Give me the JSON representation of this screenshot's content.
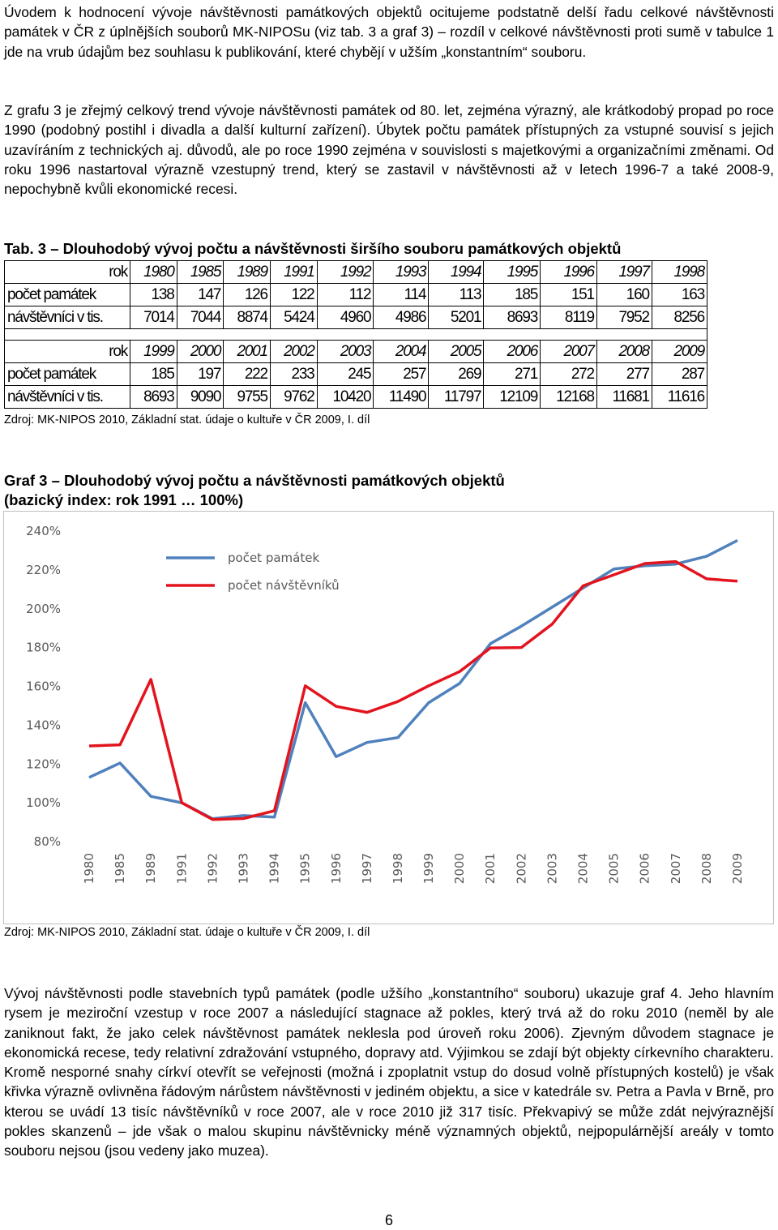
{
  "paragraphs": [
    "Úvodem k hodnocení vývoje návštěvnosti památkových objektů ocitujeme podstatně delší řadu celkové návštěvnosti památek v ČR z úplnějších souborů MK-NIPOSu (viz tab. 3 a graf 3) – rozdíl v celkové návštěvnosti proti sumě v tabulce 1 jde na vrub údajům bez souhlasu k publikování, které chybějí v užším „konstantním“ souboru.",
    "Z grafu 3 je zřejmý celkový trend vývoje návštěvnosti památek od 80. let, zejména výrazný, ale krátkodobý propad po roce 1990 (podobný postihl i divadla a další kulturní zařízení). Úbytek počtu památek přístupných za vstupné souvisí s jejich uzavíráním z technických aj. důvodů, ale po roce 1990 zejména v souvislosti s majetkovými a organizačními změnami. Od roku 1996 nastartoval výrazně vzestupný trend, který se zastavil v návštěvnosti až v letech 1996-7 a také 2008-9, nepochybně kvůli ekonomické recesi.",
    "Vývoj návštěvnosti podle stavebních typů památek (podle užšího „konstantního“ souboru) ukazuje graf 4. Jeho hlavním rysem je meziroční vzestup v roce 2007 a následující stagnace až pokles, který trvá až do roku 2010 (neměl by ale zaniknout fakt, že jako celek návštěvnost památek neklesla pod úroveň roku 2006). Zjevným důvodem stagnace je ekonomická recese, tedy relativní zdražování vstupného, dopravy atd. Výjimkou se zdají být objekty církevního charakteru. Kromě nesporné snahy církví otevřít se veřejnosti (možná i zpoplatnit vstup do dosud volně přístupných kostelů) je však křivka výrazně ovlivněna řádovým nárůstem návštěvnosti v jediném objektu, a sice v katedrále sv. Petra a Pavla v Brně, pro kterou se uvádí 13 tisíc návštěvníků v roce 2007, ale v roce 2010 již 317 tisíc. Překvapivý se může zdát nejvýraznější pokles skanzenů – jde však o malou skupinu návštěvnicky méně významných objektů, nejpopulárnější areály v tomto souboru nejsou (jsou vedeny jako muzea)."
  ],
  "table": {
    "caption": "Tab. 3 – Dlouhodobý vývoj počtu a návštěvnosti širšího souboru památkových objektů",
    "blocks": [
      {
        "header": [
          "rok",
          1980,
          1985,
          1989,
          1991,
          1992,
          1993,
          1994,
          1995,
          1996,
          1997,
          1998
        ],
        "rows": [
          [
            "počet památek",
            138,
            147,
            126,
            122,
            112,
            114,
            113,
            185,
            151,
            160,
            163
          ],
          [
            "návštěvníci v tis.",
            7014,
            7044,
            8874,
            5424,
            4960,
            4986,
            5201,
            8693,
            8119,
            7952,
            8256
          ]
        ]
      },
      {
        "header": [
          "rok",
          1999,
          2000,
          2001,
          2002,
          2003,
          2004,
          2005,
          2006,
          2007,
          2008,
          2009
        ],
        "rows": [
          [
            "počet památek",
            185,
            197,
            222,
            233,
            245,
            257,
            269,
            271,
            272,
            277,
            287
          ],
          [
            "návštěvníci v tis.",
            8693,
            9090,
            9755,
            9762,
            10420,
            11490,
            11797,
            12109,
            12168,
            11681,
            11616
          ]
        ]
      }
    ],
    "source": "Zdroj: MK-NIPOS 2010, Základní stat. údaje o kultuře v ČR 2009, I. díl"
  },
  "graph_caption": [
    "Graf 3 – Dlouhodobý vývoj počtu a návštěvnosti památkových objektů",
    "(bazický index: rok 1991 … 100%)"
  ],
  "chart_data": {
    "type": "line",
    "categories": [
      "1980",
      "1985",
      "1989",
      "1991",
      "1992",
      "1993",
      "1994",
      "1995",
      "1996",
      "1997",
      "1998",
      "1999",
      "2000",
      "2001",
      "2002",
      "2003",
      "2004",
      "2005",
      "2006",
      "2007",
      "2008",
      "2009"
    ],
    "series": [
      {
        "name": "počet památek",
        "color": "#4f81bd",
        "values": [
          113.1,
          120.5,
          103.3,
          100,
          91.8,
          93.4,
          92.6,
          151.6,
          123.8,
          131.1,
          133.6,
          151.6,
          161.5,
          182.0,
          191.0,
          200.8,
          210.7,
          220.5,
          222.1,
          223.0,
          227.0,
          235.2
        ]
      },
      {
        "name": "počet návštěvníků",
        "color": "#e3141e",
        "values": [
          129.3,
          129.9,
          163.6,
          100,
          91.4,
          91.9,
          95.9,
          160.3,
          149.7,
          146.6,
          152.2,
          160.3,
          167.6,
          179.8,
          180.0,
          192.1,
          211.8,
          217.5,
          223.3,
          224.3,
          215.4,
          214.2
        ]
      }
    ],
    "ylim": [
      80,
      240
    ],
    "yticks": [
      {
        "value": 80,
        "label": "80%"
      },
      {
        "value": 100,
        "label": "100%"
      },
      {
        "value": 120,
        "label": "120%"
      },
      {
        "value": 140,
        "label": "140%"
      },
      {
        "value": 160,
        "label": "160%"
      },
      {
        "value": 180,
        "label": "180%"
      },
      {
        "value": 200,
        "label": "200%"
      },
      {
        "value": 220,
        "label": "220%"
      },
      {
        "value": 240,
        "label": "240%"
      }
    ],
    "grid": false,
    "legend": "upper left"
  },
  "chart_source": "Zdroj: MK-NIPOS 2010, Základní stat. údaje o kultuře v ČR 2009, I. díl",
  "page_number": "6"
}
